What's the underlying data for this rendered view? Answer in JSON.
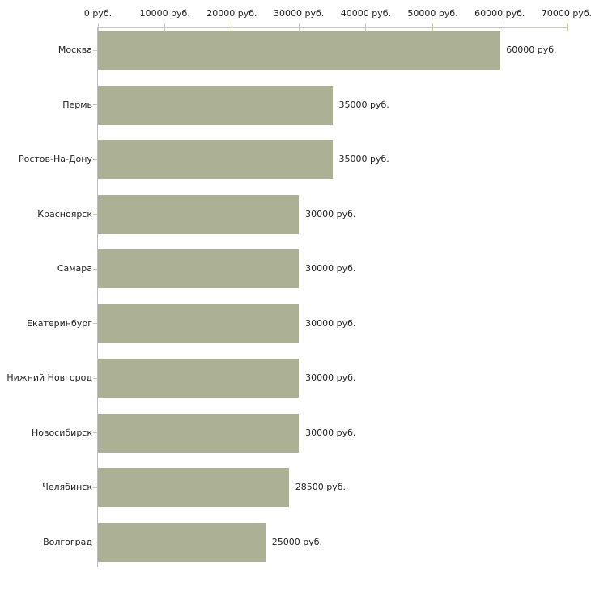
{
  "chart_data": {
    "type": "bar",
    "orientation": "horizontal",
    "title": "",
    "xlabel": "",
    "ylabel": "",
    "unit": "руб.",
    "categories": [
      "Москва",
      "Пермь",
      "Ростов-На-Дону",
      "Красноярск",
      "Самара",
      "Екатеринбург",
      "Нижний Новгород",
      "Новосибирск",
      "Челябинск",
      "Волгоград"
    ],
    "values": [
      60000,
      35000,
      35000,
      30000,
      30000,
      30000,
      30000,
      30000,
      28500,
      25000
    ],
    "value_labels": [
      "60000 руб.",
      "35000 руб.",
      "35000 руб.",
      "30000 руб.",
      "30000 руб.",
      "30000 руб.",
      "30000 руб.",
      "30000 руб.",
      "28500 руб.",
      "25000 руб."
    ],
    "x_ticks": [
      0,
      10000,
      20000,
      30000,
      40000,
      50000,
      60000,
      70000
    ],
    "x_tick_labels": [
      "0 руб.",
      "10000 руб.",
      "20000 руб.",
      "30000 руб.",
      "40000 руб.",
      "50000 руб.",
      "60000 руб.",
      "70000 руб."
    ],
    "xlim": [
      0,
      70000
    ],
    "grid": false,
    "legend": false,
    "colors": {
      "bar_fill": "#acb196",
      "axis_line": "#c9c9c2",
      "tick_mark": "#cccc99",
      "text": "#222222",
      "background": "#ffffff"
    }
  }
}
